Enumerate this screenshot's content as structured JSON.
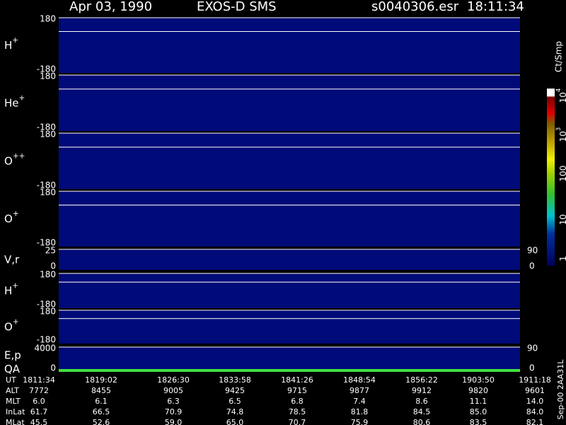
{
  "header": {
    "date": "Apr 03, 1990",
    "instrument": "EXOS-D SMS",
    "file": "s0040306.esr",
    "time": "18:11:34"
  },
  "panels": [
    {
      "label": {
        "base": "H",
        "sup": "+"
      },
      "top": "180",
      "bottom": "-180"
    },
    {
      "label": {
        "base": "He",
        "sup": "+"
      },
      "top": "180",
      "bottom": "-180"
    },
    {
      "label": {
        "base": "O",
        "sup": "++"
      },
      "top": "180",
      "bottom": "-180"
    },
    {
      "label": {
        "base": "O",
        "sup": "+"
      },
      "top": "180",
      "bottom": "-180"
    },
    {
      "label": {
        "base": "V,r",
        "sup": ""
      },
      "top": "25",
      "bottom": "0",
      "right_top": "90",
      "right_bottom": "0"
    },
    {
      "label": {
        "base": "H",
        "sup": "+"
      },
      "top": "180",
      "bottom": "-180"
    },
    {
      "label": {
        "base": "O",
        "sup": "+"
      },
      "top": "180",
      "bottom": "-180"
    },
    {
      "label": {
        "base": "E,p",
        "sup": ""
      },
      "label2": "QA",
      "top": "4000",
      "bottom": "0",
      "right_top": "90",
      "right_bottom": "0"
    }
  ],
  "colorbar": {
    "title": "Ct/Smp",
    "ticks": [
      {
        "base": "10",
        "sup": "4"
      },
      {
        "base": "10",
        "sup": "3"
      },
      {
        "base": "100",
        "sup": ""
      },
      {
        "base": "10",
        "sup": ""
      },
      {
        "base": "1",
        "sup": ""
      }
    ]
  },
  "table": {
    "rows": [
      {
        "label": "UT",
        "values": [
          "1811:34",
          "1819:02",
          "1826:30",
          "1833:58",
          "1841:26",
          "1848:54",
          "1856:22",
          "1903:50",
          "1911:18"
        ]
      },
      {
        "label": "ALT",
        "values": [
          "7772",
          "8455",
          "9005",
          "9425",
          "9715",
          "9877",
          "9912",
          "9820",
          "9601"
        ]
      },
      {
        "label": "MLT",
        "values": [
          "6.0",
          "6.1",
          "6.3",
          "6.5",
          "6.8",
          "7.4",
          "8.6",
          "11.1",
          "14.0"
        ]
      },
      {
        "label": "InLat",
        "values": [
          "61.7",
          "66.5",
          "70.9",
          "74.8",
          "78.5",
          "81.8",
          "84.5",
          "85.0",
          "84.0"
        ]
      },
      {
        "label": "MLat",
        "values": [
          "45.5",
          "52.6",
          "59.0",
          "65.0",
          "70.7",
          "75.9",
          "80.6",
          "83.5",
          "82.1"
        ]
      }
    ]
  },
  "footer": "Sep-00 2AA31L"
}
